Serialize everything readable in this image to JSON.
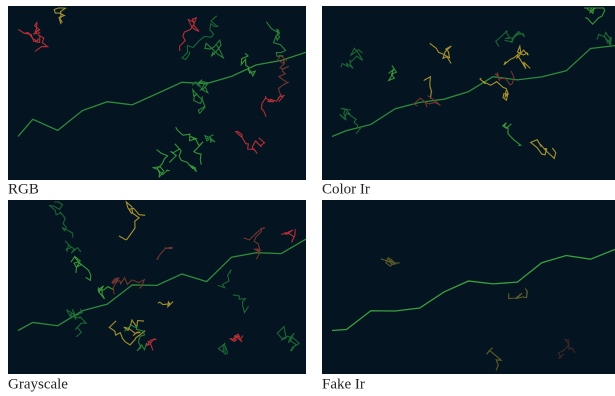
{
  "panels": [
    {
      "label": "RGB"
    },
    {
      "label": "Color Ir"
    },
    {
      "label": "Grayscale"
    },
    {
      "label": "Fake Ir"
    }
  ]
}
